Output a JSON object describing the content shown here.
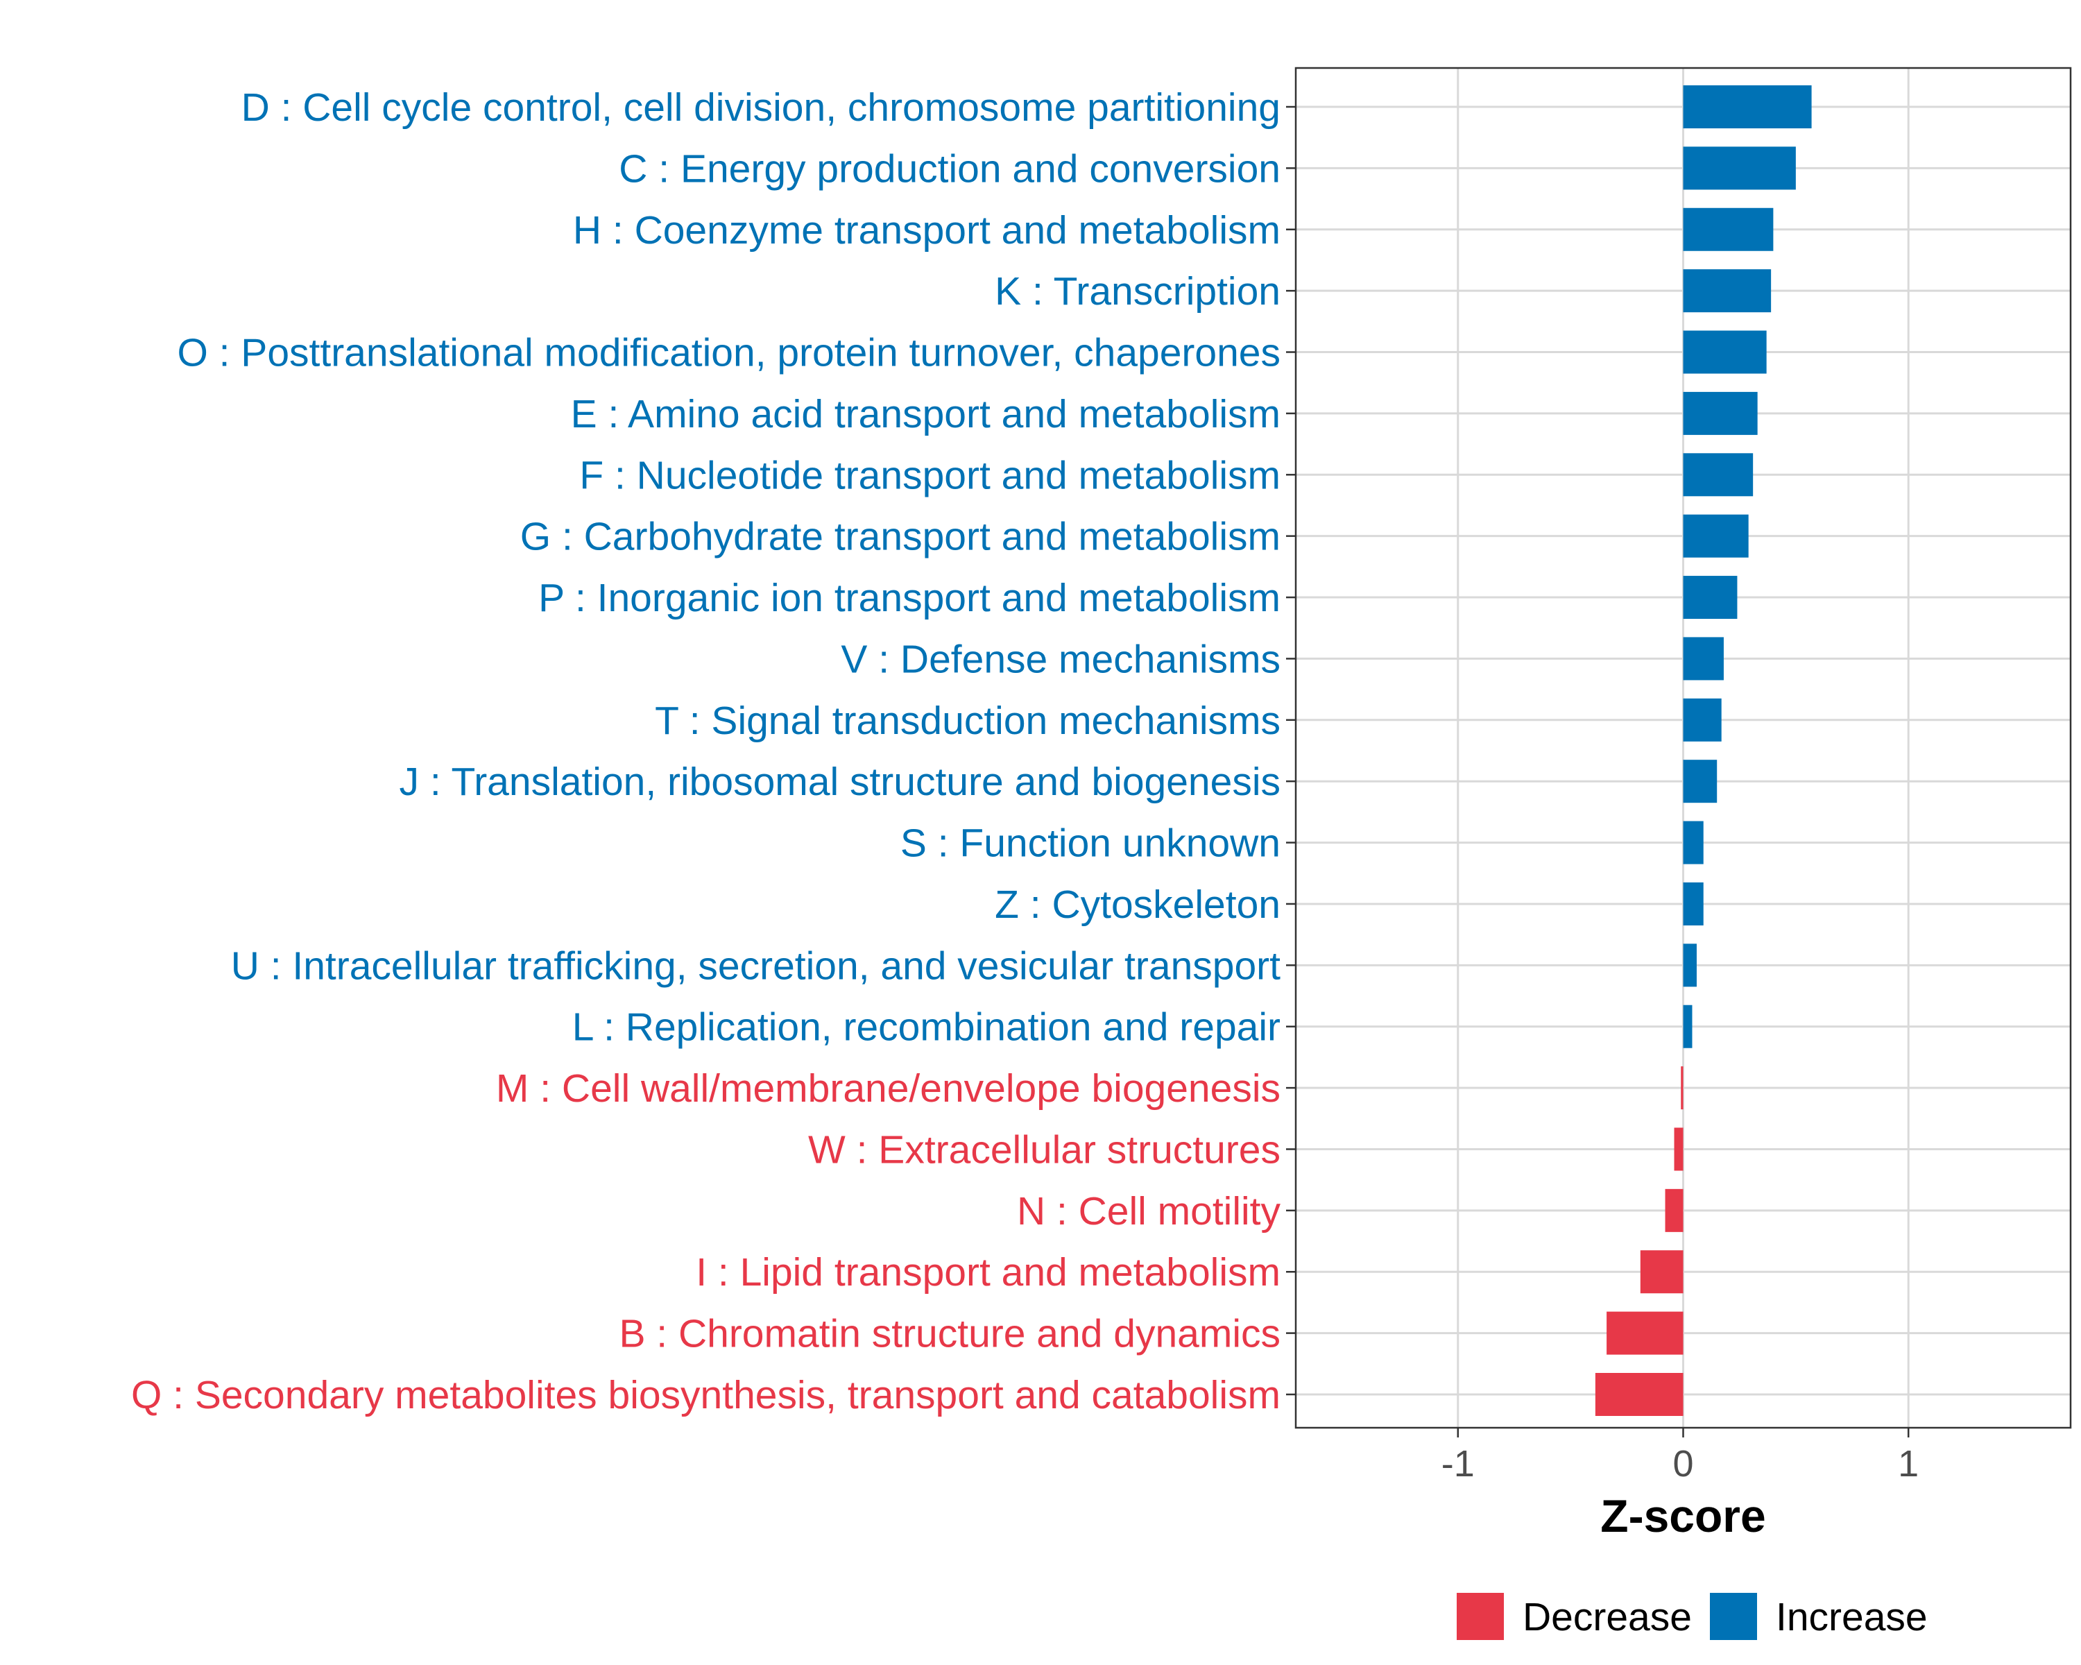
{
  "chart_data": {
    "type": "bar",
    "orientation": "horizontal",
    "xlabel": "Z-score",
    "ylabel": "",
    "xlim": [
      -1.72,
      1.72
    ],
    "xticks": [
      -1,
      0,
      1
    ],
    "xtick_labels": [
      "-1",
      "0",
      "1"
    ],
    "grid": true,
    "legend_position": "bottom",
    "colors": {
      "Increase": "#0072b5",
      "Decrease": "#e73848"
    },
    "categories": [
      "D : Cell cycle control, cell division, chromosome partitioning",
      "C : Energy production and conversion",
      "H : Coenzyme transport and metabolism",
      "K : Transcription",
      "O : Posttranslational modification, protein turnover, chaperones",
      "E : Amino acid transport and metabolism",
      "F : Nucleotide transport and metabolism",
      "G : Carbohydrate transport and metabolism",
      "P : Inorganic ion transport and metabolism",
      "V : Defense mechanisms",
      "T : Signal transduction mechanisms",
      "J : Translation, ribosomal structure and biogenesis",
      "S : Function unknown",
      "Z : Cytoskeleton",
      "U : Intracellular trafficking, secretion, and vesicular transport",
      "L : Replication, recombination and repair",
      "M : Cell wall/membrane/envelope biogenesis",
      "W : Extracellular structures",
      "N : Cell motility",
      "I : Lipid transport and metabolism",
      "B : Chromatin structure and dynamics",
      "Q : Secondary metabolites biosynthesis, transport and catabolism"
    ],
    "values": [
      0.57,
      0.5,
      0.4,
      0.39,
      0.37,
      0.33,
      0.31,
      0.29,
      0.24,
      0.18,
      0.17,
      0.15,
      0.09,
      0.09,
      0.06,
      0.04,
      -0.01,
      -0.04,
      -0.08,
      -0.19,
      -0.34,
      -0.39
    ],
    "groups": [
      "Increase",
      "Increase",
      "Increase",
      "Increase",
      "Increase",
      "Increase",
      "Increase",
      "Increase",
      "Increase",
      "Increase",
      "Increase",
      "Increase",
      "Increase",
      "Increase",
      "Increase",
      "Increase",
      "Decrease",
      "Decrease",
      "Decrease",
      "Decrease",
      "Decrease",
      "Decrease"
    ],
    "legend": [
      "Decrease",
      "Increase"
    ]
  }
}
